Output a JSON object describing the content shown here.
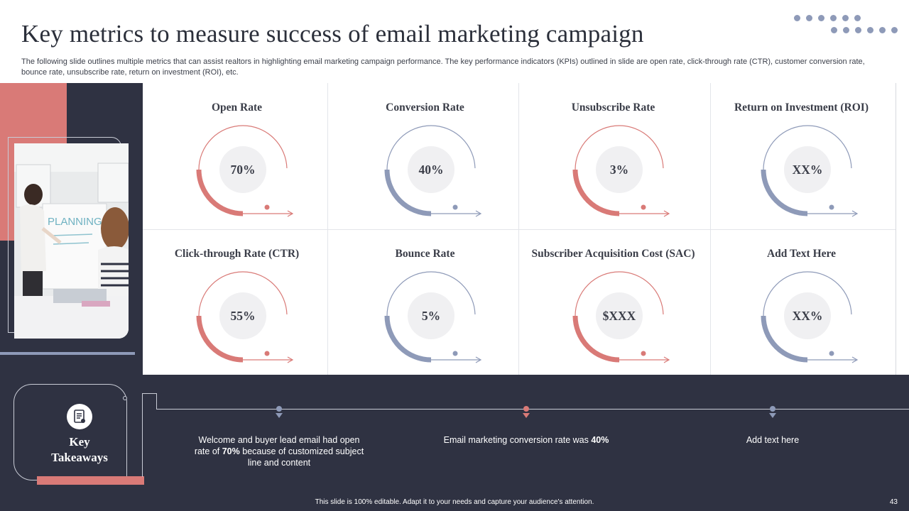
{
  "slide": {
    "title": "Key metrics to measure success of email marketing campaign",
    "subtitle": "The following slide outlines multiple metrics that can assist realtors in highlighting email marketing campaign performance. The key performance indicators (KPIs) outlined in slide are open rate, click-through rate (CTR), customer conversion rate, bounce rate, unsubscribe rate, return on investment (ROI), etc.",
    "footer": "This slide is 100% editable. Adapt it to your needs and capture your audience's attention.",
    "page_number": "43"
  },
  "colors": {
    "pink": "#d97a77",
    "blue": "#8e9ab8",
    "dark": "#2f3242"
  },
  "photo": {
    "whiteboard_text": "PLANNING"
  },
  "metrics": [
    {
      "title": "Open Rate",
      "value": "70%",
      "color": "pink"
    },
    {
      "title": "Conversion Rate",
      "value": "40%",
      "color": "blue"
    },
    {
      "title": "Unsubscribe Rate",
      "value": "3%",
      "color": "pink"
    },
    {
      "title": "Return on Investment (ROI)",
      "value": "XX%",
      "color": "blue"
    },
    {
      "title": "Click-through  Rate (CTR)",
      "value": "55%",
      "color": "pink"
    },
    {
      "title": "Bounce Rate",
      "value": "5%",
      "color": "blue"
    },
    {
      "title": "Subscriber Acquisition  Cost (SAC)",
      "value": "$XXX",
      "color": "pink"
    },
    {
      "title": "Add Text Here",
      "value": "XX%",
      "color": "blue"
    }
  ],
  "takeaways": {
    "title_line1": "Key",
    "title_line2": "Takeaways",
    "icon": "document-icon",
    "items": [
      {
        "before": "Welcome and buyer lead email had open rate of ",
        "bold": "70%",
        "after": " because of customized subject line and content",
        "color": "blue"
      },
      {
        "before": "Email marketing conversion rate was ",
        "bold": "40%",
        "after": "",
        "color": "pink"
      },
      {
        "before": "Add text here",
        "bold": "",
        "after": "",
        "color": "blue"
      }
    ]
  }
}
